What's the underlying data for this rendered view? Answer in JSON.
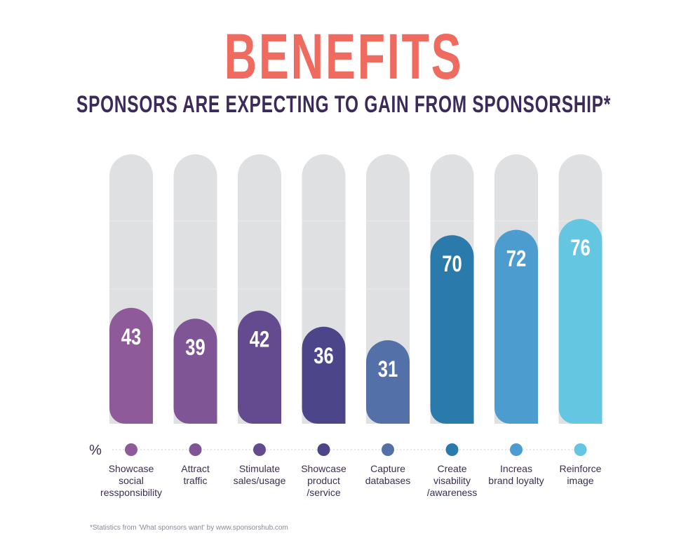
{
  "title": "BENEFITS",
  "subtitle": "SPONSORS ARE EXPECTING TO GAIN FROM SPONSORSHIP*",
  "footnote": "*Statistics from 'What sponsors want' by www.sponsorshub.com",
  "chart_data": {
    "type": "bar",
    "unit_symbol": "%",
    "categories": [
      "Showcase\nsocial\nressponsibility",
      "Attract\ntraffic",
      "Stimulate\nsales/usage",
      "Showcase\nproduct\n/service",
      "Capture\ndatabases",
      "Create\nvisability\n/awareness",
      "Increas\nbrand loyalty",
      "Reinforce\nimage"
    ],
    "values": [
      43,
      39,
      42,
      36,
      31,
      70,
      72,
      76
    ],
    "colors": [
      "#8e5a9a",
      "#7f5596",
      "#644a8f",
      "#4d4589",
      "#5470a8",
      "#2a7aab",
      "#4d9ccf",
      "#64c6e0"
    ],
    "ylim": [
      0,
      100
    ]
  }
}
